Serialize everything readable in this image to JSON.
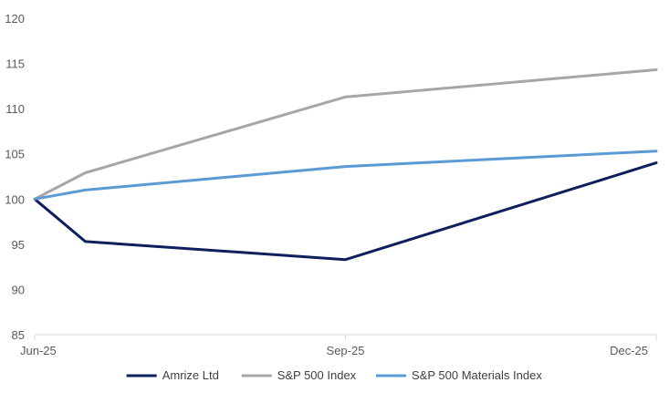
{
  "chart_data": {
    "type": "line",
    "title": "",
    "xlabel": "",
    "ylabel": "",
    "x": [
      "2025-06-30",
      "2025-07-15",
      "2025-09-30",
      "2025-12-31"
    ],
    "x_tick_values": [
      "2025-06-30",
      "2025-09-30",
      "2025-12-31"
    ],
    "x_tick_labels": [
      "Jun-25",
      "Sep-25",
      "Dec-25"
    ],
    "ylim": [
      85,
      120
    ],
    "y_ticks": [
      85,
      90,
      95,
      100,
      105,
      110,
      115,
      120
    ],
    "grid": false,
    "legend_position": "bottom",
    "series": [
      {
        "name": "Amrize Ltd",
        "color": "#0d1f5c",
        "values": [
          100,
          95.3,
          93.3,
          104.0
        ]
      },
      {
        "name": "S&P 500 Index",
        "color": "#a6a6a6",
        "values": [
          100,
          102.9,
          111.3,
          114.3
        ]
      },
      {
        "name": "S&P 500 Materials Index",
        "color": "#5b9bd5",
        "values": [
          100,
          101.0,
          103.6,
          105.3
        ]
      }
    ]
  }
}
